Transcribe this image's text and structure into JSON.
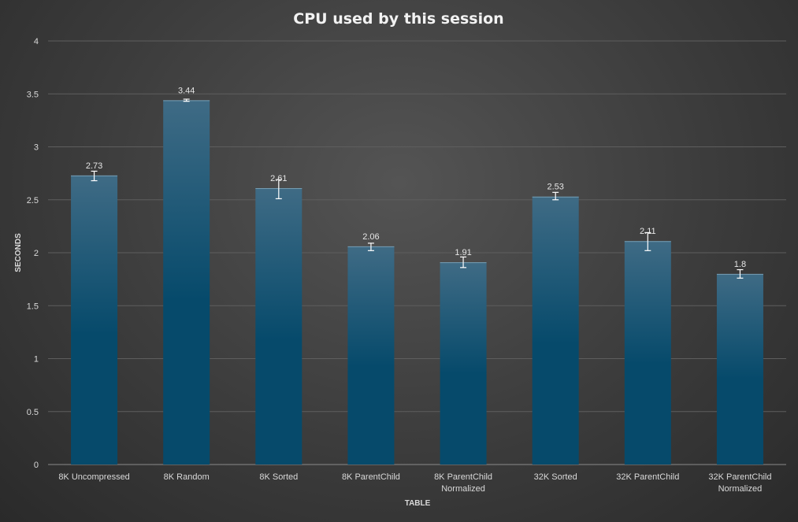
{
  "chart_data": {
    "type": "bar",
    "title": "CPU used by this session",
    "xlabel": "TABLE",
    "ylabel": "SECONDS",
    "ylim": [
      0,
      4
    ],
    "ytick_step": 0.5,
    "yticks": [
      "0",
      "0.5",
      "1",
      "1.5",
      "2",
      "2.5",
      "3",
      "3.5",
      "4"
    ],
    "grid": true,
    "legend": "none",
    "colors": {
      "bar_top": "#3f6b85",
      "bar_bottom": "#064a6b",
      "error_bar": "#ffffff"
    },
    "categories": [
      [
        "8K Uncompressed"
      ],
      [
        "8K Random"
      ],
      [
        "8K Sorted"
      ],
      [
        "8K ParentChild"
      ],
      [
        "8K ParentChild",
        "Normalized"
      ],
      [
        "32K Sorted"
      ],
      [
        "32K ParentChild"
      ],
      [
        "32K ParentChild",
        "Normalized"
      ]
    ],
    "values": [
      2.73,
      3.44,
      2.61,
      2.06,
      1.91,
      2.53,
      2.11,
      1.8
    ],
    "data_labels": [
      "2.73",
      "3.44",
      "2.61",
      "2.06",
      "1.91",
      "2.53",
      "2.11",
      "1.8"
    ],
    "error_bars": [
      [
        2.68,
        2.77
      ],
      [
        3.43,
        3.45
      ],
      [
        2.51,
        2.69
      ],
      [
        2.02,
        2.09
      ],
      [
        1.86,
        1.96
      ],
      [
        2.5,
        2.57
      ],
      [
        2.02,
        2.19
      ],
      [
        1.76,
        1.84
      ]
    ]
  }
}
